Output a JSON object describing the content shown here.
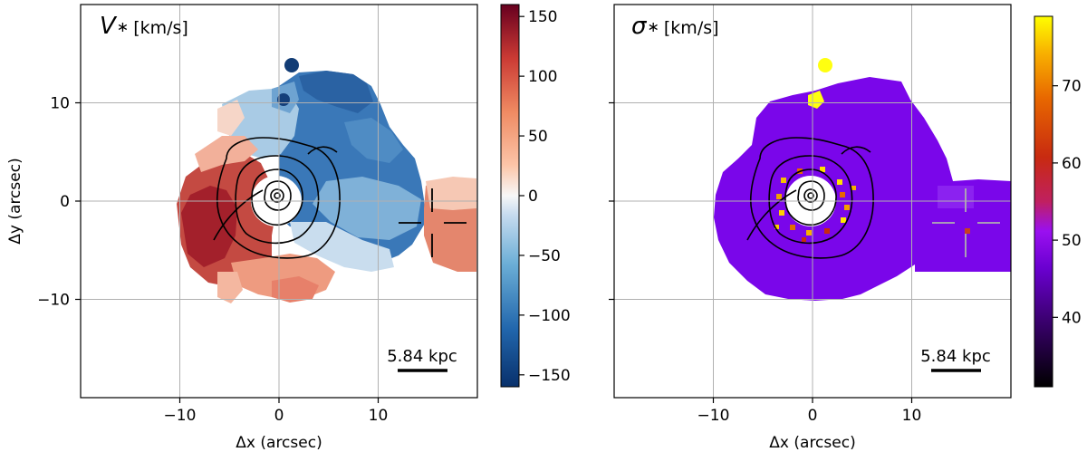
{
  "chart_data": [
    {
      "type": "heatmap",
      "title_symbol": "V",
      "title_sub": "∗",
      "title_unit": "[km/s]",
      "xlabel": "Δx (arcsec)",
      "ylabel": "Δy (arcsec)",
      "xlim": [
        -20,
        20
      ],
      "ylim": [
        -20,
        20
      ],
      "xticks": [
        -10,
        0,
        10
      ],
      "yticks": [
        -10,
        0,
        10
      ],
      "xtick_labels": [
        "−10",
        "0",
        "10"
      ],
      "ytick_labels": [
        "−10",
        "0",
        "10"
      ],
      "grid": true,
      "scalebar_label": "5.84 kpc",
      "colorbar": {
        "colormap": "RdBu_r",
        "range": [
          -160,
          160
        ],
        "ticks": [
          150,
          100,
          50,
          0,
          -50,
          -100,
          -150
        ],
        "tick_labels": [
          "150",
          "100",
          "50",
          "0",
          "−50",
          "−100",
          "−150"
        ]
      }
    },
    {
      "type": "heatmap",
      "title_symbol": "σ",
      "title_sub": "∗",
      "title_unit": "[km/s]",
      "xlabel": "Δx (arcsec)",
      "ylabel": "",
      "xlim": [
        -20,
        20
      ],
      "ylim": [
        -20,
        20
      ],
      "xticks": [
        -10,
        0,
        10
      ],
      "yticks": [
        -10,
        0,
        10
      ],
      "xtick_labels": [
        "−10",
        "0",
        "10"
      ],
      "grid": true,
      "scalebar_label": "5.84 kpc",
      "colorbar": {
        "colormap": "gnuplot",
        "range": [
          31,
          79
        ],
        "ticks": [
          70,
          60,
          50,
          40
        ],
        "tick_labels": [
          "70",
          "60",
          "50",
          "40"
        ]
      }
    }
  ]
}
